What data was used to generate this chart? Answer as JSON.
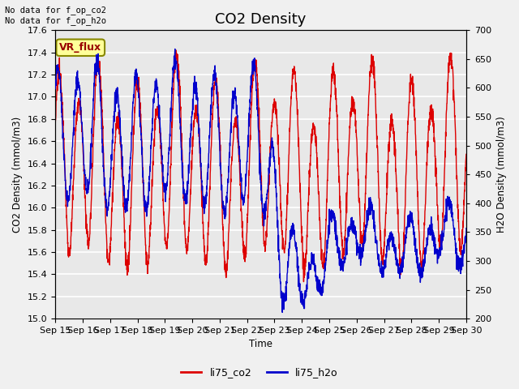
{
  "title": "CO2 Density",
  "xlabel": "Time",
  "ylabel_left": "CO2 Density (mmol/m3)",
  "ylabel_right": "H2O Density (mmol/m3)",
  "top_left_text_line1": "No data for f_op_co2",
  "top_left_text_line2": "No data for f_op_h2o",
  "legend_box_label": "VR_flux",
  "legend_box_facecolor": "#FFFF99",
  "legend_box_edgecolor": "#888800",
  "legend_entries": [
    "li75_co2",
    "li75_h2o"
  ],
  "co2_color": "#DD0000",
  "h2o_color": "#0000CC",
  "ylim_left": [
    15.0,
    17.6
  ],
  "ylim_right": [
    200,
    700
  ],
  "yticks_left": [
    15.0,
    15.2,
    15.4,
    15.6,
    15.8,
    16.0,
    16.2,
    16.4,
    16.6,
    16.8,
    17.0,
    17.2,
    17.4,
    17.6
  ],
  "yticks_right": [
    200,
    250,
    300,
    350,
    400,
    450,
    500,
    550,
    600,
    650,
    700
  ],
  "xtick_labels": [
    "Sep 15",
    "Sep 16",
    "Sep 17",
    "Sep 18",
    "Sep 19",
    "Sep 20",
    "Sep 21",
    "Sep 22",
    "Sep 23",
    "Sep 24",
    "Sep 25",
    "Sep 26",
    "Sep 27",
    "Sep 28",
    "Sep 29",
    "Sep 30"
  ],
  "plot_bg_color": "#E8E8E8",
  "fig_bg_color": "#F0F0F0",
  "grid_color": "#FFFFFF",
  "title_fontsize": 13,
  "label_fontsize": 8.5,
  "tick_fontsize": 8,
  "linewidth": 1.0,
  "n_points": 2160,
  "n_days": 15
}
